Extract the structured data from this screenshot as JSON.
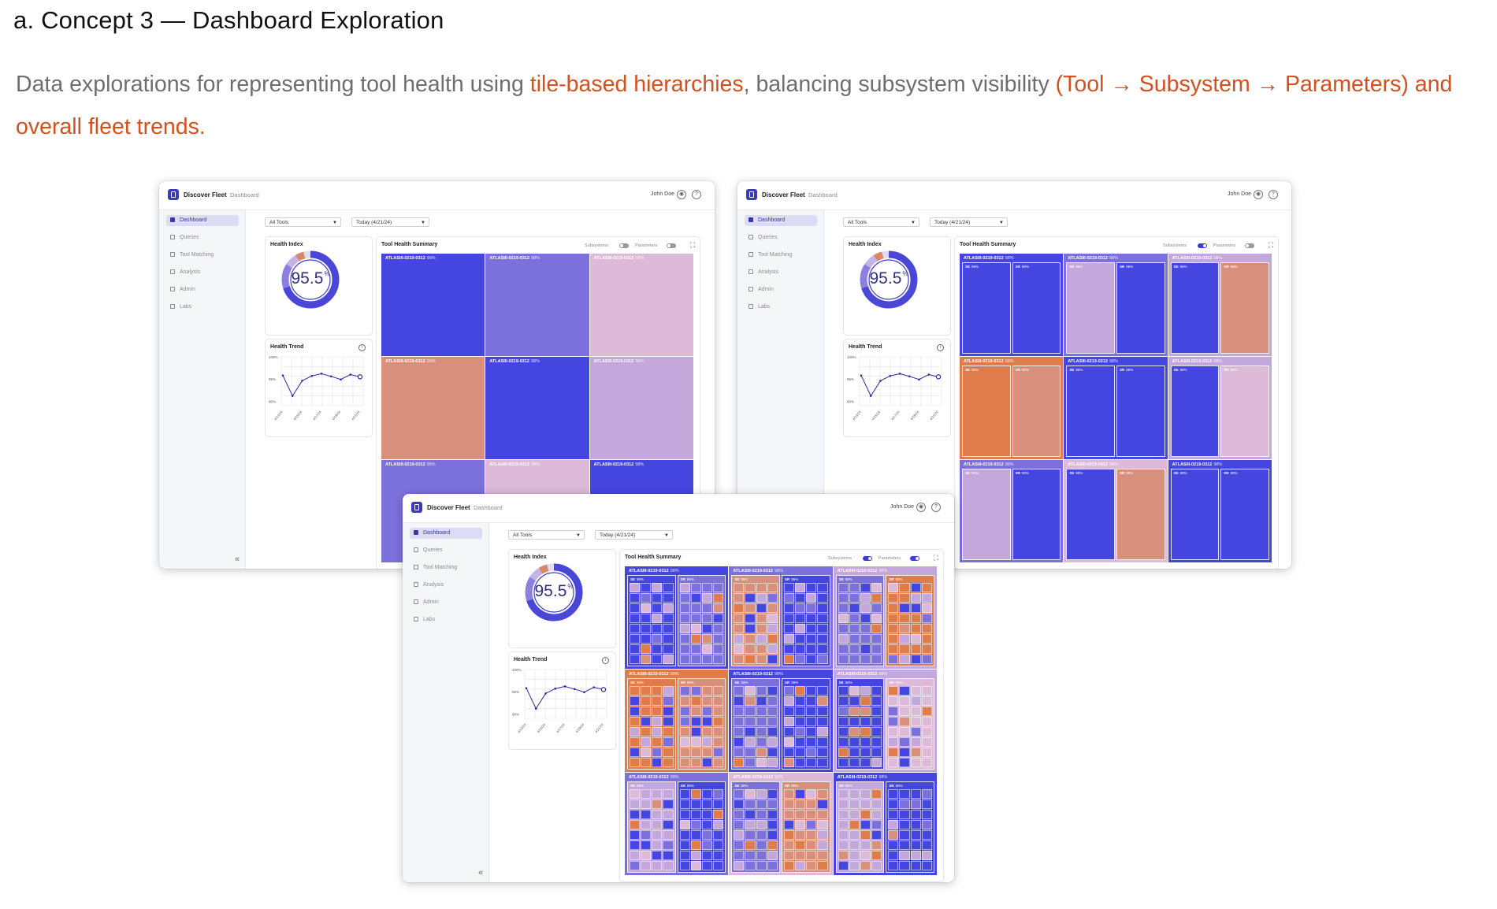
{
  "heading": "a. Concept 3 — Dashboard Exploration",
  "description": {
    "part1": "Data explorations for representing tool health using ",
    "highlight1": "tile-based hierarchies",
    "part2": ", balancing subsystem visibility ",
    "highlight2": "(Tool → Subsystem → Parameters) and overall fleet trends."
  },
  "colors": {
    "accent": "#d3501f",
    "tile_blue": "#4545e0",
    "tile_violet": "#7c70dc",
    "tile_lavender": "#c4a8dc",
    "tile_pink": "#dcbad8",
    "tile_salmon": "#d8907c",
    "tile_orange": "#de7c4c",
    "trend_line": "#2a2a9a"
  },
  "dashboard": {
    "app_name": "Discover Fleet",
    "crumb": "Dashboard",
    "user": "John Doe",
    "help_icon": "help-circle-icon",
    "user_icon": "user-circle-icon",
    "nav": [
      {
        "label": "Dashboard",
        "icon": "grid-icon",
        "active": true
      },
      {
        "label": "Queries",
        "icon": "queries-icon",
        "active": false
      },
      {
        "label": "Tool Matching",
        "icon": "trend-icon",
        "active": false
      },
      {
        "label": "Analysis",
        "icon": "analysis-icon",
        "active": false
      },
      {
        "label": "Admin",
        "icon": "admin-icon",
        "active": false
      },
      {
        "label": "Labs",
        "icon": "labs-icon",
        "active": false
      }
    ],
    "collapse": "«",
    "filter_tools": "All Tools",
    "filter_date": "Today (4/21/24)",
    "health_index": {
      "title": "Health Index",
      "value": "95.5",
      "unit": "%"
    },
    "health_trend": {
      "title": "Health Trend",
      "y_ticks": [
        "100%",
        "95%",
        "90%"
      ],
      "x_ticks": [
        "4/13/24",
        "4/15/24",
        "4/17/24",
        "4/19/24",
        "4/21/24"
      ]
    },
    "summary": {
      "title": "Tool Health Summary",
      "subsystems_label": "Subsystems",
      "parameters_label": "Parameters",
      "tool_name": "ATLASIII-0219-0312",
      "tool_pct": "98%",
      "sub_left": "SE",
      "sub_right": "SR",
      "sub_pct": "98%"
    }
  },
  "chart_data": {
    "type": "line",
    "title": "Health Trend",
    "x": [
      "4/13/24",
      "",
      "4/15/24",
      "",
      "4/17/24",
      "",
      "4/19/24",
      "",
      "4/21/24"
    ],
    "values": [
      95.8,
      91.2,
      94.6,
      95.7,
      96.2,
      95.6,
      94.9,
      96.0,
      95.5
    ],
    "ylim": [
      89,
      100
    ],
    "ylabel": "",
    "xlabel": "",
    "grid": true
  },
  "windows": [
    {
      "mode": "tools",
      "subsystems_on": false,
      "parameters_on": false,
      "tiles": [
        "blue",
        "violet",
        "pink",
        "salmon",
        "blue",
        "lavender",
        "violet",
        "pink",
        "blue"
      ]
    },
    {
      "mode": "subsystems",
      "subsystems_on": true,
      "parameters_on": false,
      "tiles": [
        {
          "bg": "blue",
          "subs": [
            "blue",
            "blue"
          ]
        },
        {
          "bg": "violet",
          "subs": [
            "lavender",
            "blue"
          ]
        },
        {
          "bg": "lavender",
          "subs": [
            "blue",
            "salmon"
          ]
        },
        {
          "bg": "orange",
          "subs": [
            "orange",
            "salmon"
          ]
        },
        {
          "bg": "blue",
          "subs": [
            "blue",
            "blue"
          ]
        },
        {
          "bg": "lavender",
          "subs": [
            "blue",
            "pink"
          ]
        },
        {
          "bg": "violet",
          "subs": [
            "lavender",
            "blue"
          ]
        },
        {
          "bg": "pink",
          "subs": [
            "blue",
            "salmon"
          ]
        },
        {
          "bg": "blue",
          "subs": [
            "blue",
            "blue"
          ]
        }
      ]
    },
    {
      "mode": "parameters",
      "subsystems_on": true,
      "parameters_on": true,
      "tiles": [
        {
          "bg": "blue",
          "subs": [
            "blue",
            "violet"
          ]
        },
        {
          "bg": "violet",
          "subs": [
            "salmon",
            "blue"
          ]
        },
        {
          "bg": "lavender",
          "subs": [
            "violet",
            "orange"
          ]
        },
        {
          "bg": "orange",
          "subs": [
            "orange",
            "salmon"
          ]
        },
        {
          "bg": "blue",
          "subs": [
            "violet",
            "blue"
          ]
        },
        {
          "bg": "lavender",
          "subs": [
            "blue",
            "pink"
          ]
        },
        {
          "bg": "violet",
          "subs": [
            "lavender",
            "blue"
          ]
        },
        {
          "bg": "pink",
          "subs": [
            "violet",
            "salmon"
          ]
        },
        {
          "bg": "blue",
          "subs": [
            "lavender",
            "blue"
          ]
        }
      ]
    }
  ]
}
